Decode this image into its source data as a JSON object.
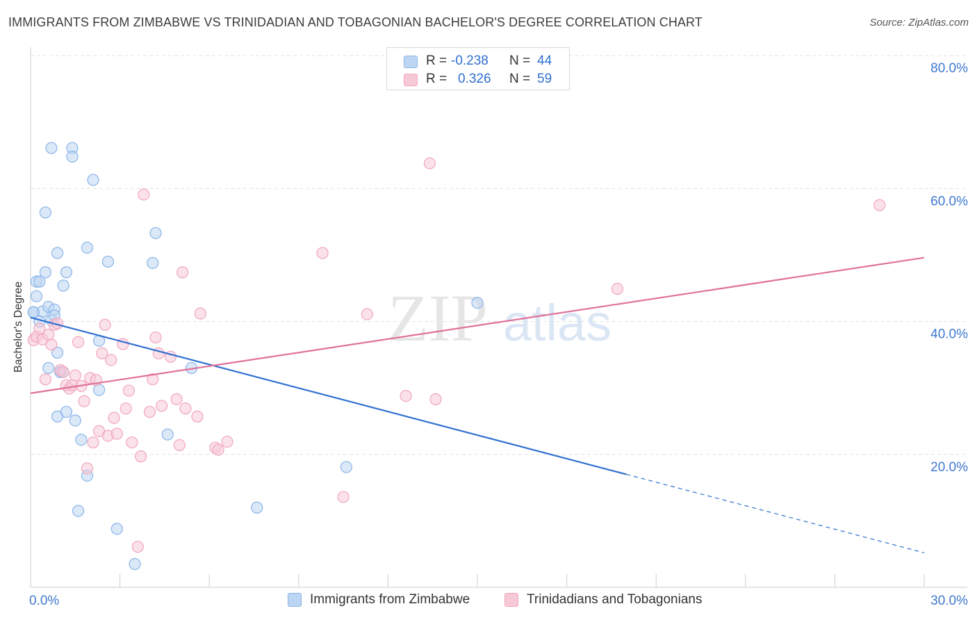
{
  "title": "IMMIGRANTS FROM ZIMBABWE VS TRINIDADIAN AND TOBAGONIAN BACHELOR'S DEGREE CORRELATION CHART",
  "source": "Source: ZipAtlas.com",
  "watermark": {
    "zip": "ZIP",
    "atlas": "atlas"
  },
  "legend": {
    "r_label": "R =",
    "n_label": "N =",
    "series": [
      {
        "r": "-0.238",
        "n": "44"
      },
      {
        "r": "0.326",
        "n": "59"
      }
    ]
  },
  "chart_data": {
    "type": "scatter",
    "title": "IMMIGRANTS FROM ZIMBABWE VS TRINIDADIAN AND TOBAGONIAN BACHELOR'S DEGREE CORRELATION CHART",
    "xlabel": "",
    "ylabel": "Bachelor's Degree",
    "xlim": [
      0,
      30
    ],
    "ylim": [
      0,
      80
    ],
    "x_tick_labels": [
      "0.0%",
      "30.0%"
    ],
    "y_ticks": [
      20,
      40,
      60,
      80
    ],
    "y_tick_labels": [
      "20.0%",
      "40.0%",
      "60.0%",
      "80.0%"
    ],
    "grid": true,
    "legend_position": "bottom",
    "series": [
      {
        "name": "Immigrants from Zimbabwe",
        "color": "#8ab4e8",
        "fill": "#bcd5f2",
        "line_color": "#2f6fd0",
        "trend": {
          "x0": 0,
          "y0": 40.6,
          "x1": 20.0,
          "y1": 17.0,
          "dash_to_x": 30,
          "dash_to_y": 5.2
        },
        "points": [
          [
            0.1,
            41.4
          ],
          [
            0.2,
            43.8
          ],
          [
            0.2,
            46.0
          ],
          [
            0.3,
            46.0
          ],
          [
            0.3,
            40.0
          ],
          [
            0.4,
            41.5
          ],
          [
            0.5,
            47.4
          ],
          [
            0.5,
            56.4
          ],
          [
            0.6,
            42.2
          ],
          [
            0.6,
            33.0
          ],
          [
            0.7,
            66.1
          ],
          [
            0.7,
            40.2
          ],
          [
            0.8,
            41.8
          ],
          [
            0.8,
            40.9
          ],
          [
            0.9,
            50.3
          ],
          [
            0.9,
            25.7
          ],
          [
            0.9,
            35.3
          ],
          [
            1.0,
            32.4
          ],
          [
            1.0,
            32.4
          ],
          [
            1.1,
            45.4
          ],
          [
            1.2,
            47.4
          ],
          [
            1.2,
            26.4
          ],
          [
            1.4,
            66.1
          ],
          [
            1.4,
            64.8
          ],
          [
            1.5,
            25.1
          ],
          [
            1.6,
            11.5
          ],
          [
            1.7,
            22.2
          ],
          [
            1.9,
            51.1
          ],
          [
            1.9,
            16.8
          ],
          [
            2.1,
            61.3
          ],
          [
            2.3,
            29.7
          ],
          [
            2.3,
            37.1
          ],
          [
            2.6,
            49.0
          ],
          [
            2.9,
            8.8
          ],
          [
            3.5,
            3.5
          ],
          [
            4.1,
            48.8
          ],
          [
            4.2,
            53.3
          ],
          [
            4.6,
            23.0
          ],
          [
            5.4,
            33.0
          ],
          [
            7.6,
            12.0
          ],
          [
            10.6,
            18.1
          ],
          [
            15.0,
            42.8
          ],
          [
            0.1,
            41.4
          ],
          [
            1.1,
            32.4
          ]
        ]
      },
      {
        "name": "Trinidadians and Tobagonians",
        "color": "#f0a6bd",
        "fill": "#f7c9d7",
        "line_color": "#e0709a",
        "trend": {
          "x0": 0,
          "y0": 29.2,
          "x1": 30,
          "y1": 49.6
        },
        "points": [
          [
            0.1,
            37.2
          ],
          [
            0.2,
            37.7
          ],
          [
            0.3,
            38.9
          ],
          [
            0.4,
            37.3
          ],
          [
            0.5,
            31.3
          ],
          [
            0.6,
            38.0
          ],
          [
            0.7,
            36.5
          ],
          [
            0.8,
            39.5
          ],
          [
            0.9,
            39.7
          ],
          [
            1.0,
            32.7
          ],
          [
            1.1,
            32.4
          ],
          [
            1.2,
            30.4
          ],
          [
            1.3,
            29.9
          ],
          [
            1.4,
            30.4
          ],
          [
            1.5,
            31.9
          ],
          [
            1.6,
            36.9
          ],
          [
            1.7,
            30.3
          ],
          [
            1.8,
            28.0
          ],
          [
            1.9,
            17.9
          ],
          [
            2.0,
            31.5
          ],
          [
            2.1,
            21.8
          ],
          [
            2.2,
            31.2
          ],
          [
            2.3,
            23.5
          ],
          [
            2.4,
            35.2
          ],
          [
            2.5,
            39.5
          ],
          [
            2.6,
            22.8
          ],
          [
            2.7,
            34.2
          ],
          [
            2.8,
            25.5
          ],
          [
            2.9,
            23.1
          ],
          [
            3.1,
            36.6
          ],
          [
            3.2,
            26.9
          ],
          [
            3.3,
            29.6
          ],
          [
            3.4,
            21.8
          ],
          [
            3.6,
            6.1
          ],
          [
            3.7,
            19.7
          ],
          [
            3.8,
            59.1
          ],
          [
            4.0,
            26.4
          ],
          [
            4.1,
            31.3
          ],
          [
            4.2,
            37.6
          ],
          [
            4.3,
            35.2
          ],
          [
            4.4,
            27.3
          ],
          [
            4.7,
            34.7
          ],
          [
            4.9,
            28.3
          ],
          [
            5.0,
            21.4
          ],
          [
            5.1,
            47.4
          ],
          [
            5.2,
            26.9
          ],
          [
            5.6,
            25.7
          ],
          [
            5.7,
            41.2
          ],
          [
            6.2,
            21.0
          ],
          [
            6.3,
            20.7
          ],
          [
            6.6,
            21.9
          ],
          [
            9.8,
            50.3
          ],
          [
            10.5,
            13.6
          ],
          [
            11.3,
            41.1
          ],
          [
            12.6,
            28.8
          ],
          [
            13.4,
            63.8
          ],
          [
            13.6,
            28.3
          ],
          [
            19.7,
            44.9
          ],
          [
            28.5,
            57.5
          ]
        ]
      }
    ]
  }
}
